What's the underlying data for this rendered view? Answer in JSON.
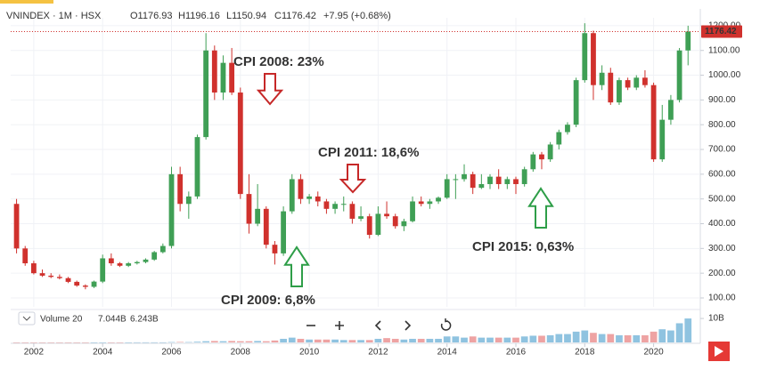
{
  "chart_data": {
    "type": "candlestick",
    "header": {
      "symbol": "VNINDEX · 1M · HSX",
      "open": "O1176.93",
      "high": "H1196.16",
      "low": "L1150.94",
      "close": "C1176.42",
      "change": "+7.95 (+0.68%)"
    },
    "volume_legend": {
      "name": "Volume 20",
      "value": "7.044B",
      "ma": "6.243B"
    },
    "last_price": {
      "value": 1176.42,
      "label": "1176.42"
    },
    "up_color": "#3f9f55",
    "down_color": "#d0312d",
    "volume_up_color": "#8fc3e0",
    "volume_down_color": "#eea3a3",
    "grid": true,
    "xlim": [
      2001.33,
      2021.33
    ],
    "xticks": [
      2002,
      2004,
      2006,
      2008,
      2010,
      2012,
      2014,
      2016,
      2018,
      2020
    ],
    "ylim": [
      64,
      1232
    ],
    "yticks": [
      {
        "value": 100,
        "label": "100.00"
      },
      {
        "value": 200,
        "label": "200.00"
      },
      {
        "value": 300,
        "label": "300.00"
      },
      {
        "value": 400,
        "label": "400.00"
      },
      {
        "value": 500,
        "label": "500.00"
      },
      {
        "value": 600,
        "label": "600.00"
      },
      {
        "value": 700,
        "label": "700.00"
      },
      {
        "value": 800,
        "label": "800.00"
      },
      {
        "value": 900,
        "label": "900.00"
      },
      {
        "value": 1000,
        "label": "1000.00"
      },
      {
        "value": 1100,
        "label": "1100.00"
      },
      {
        "value": 1200,
        "label": "1200.00"
      }
    ],
    "volume_lim": [
      0,
      13000000000
    ],
    "volume_ticks": [
      {
        "value": 10000000000,
        "label": "10B"
      }
    ],
    "x": [
      2001.5,
      2001.75,
      2002,
      2002.25,
      2002.5,
      2002.75,
      2003,
      2003.25,
      2003.5,
      2003.75,
      2004,
      2004.25,
      2004.5,
      2004.75,
      2005,
      2005.25,
      2005.5,
      2005.75,
      2006,
      2006.25,
      2006.5,
      2006.75,
      2007,
      2007.25,
      2007.5,
      2007.75,
      2008,
      2008.25,
      2008.5,
      2008.75,
      2009,
      2009.25,
      2009.5,
      2009.75,
      2010,
      2010.25,
      2010.5,
      2010.75,
      2011,
      2011.25,
      2011.5,
      2011.75,
      2012,
      2012.25,
      2012.5,
      2012.75,
      2013,
      2013.25,
      2013.5,
      2013.75,
      2014,
      2014.25,
      2014.5,
      2014.75,
      2015,
      2015.25,
      2015.5,
      2015.75,
      2016,
      2016.25,
      2016.5,
      2016.75,
      2017,
      2017.25,
      2017.5,
      2017.75,
      2018,
      2018.25,
      2018.5,
      2018.75,
      2019,
      2019.25,
      2019.5,
      2019.75,
      2020,
      2020.25,
      2020.5,
      2020.75,
      2021
    ],
    "open": [
      480,
      300,
      240,
      200,
      190,
      185,
      180,
      165,
      150,
      145,
      166,
      260,
      240,
      230,
      240,
      245,
      255,
      285,
      310,
      600,
      480,
      510,
      750,
      1100,
      930,
      1050,
      930,
      520,
      400,
      460,
      315,
      280,
      450,
      580,
      500,
      510,
      490,
      460,
      480,
      480,
      420,
      430,
      355,
      440,
      430,
      390,
      410,
      490,
      480,
      490,
      505,
      580,
      580,
      600,
      545,
      560,
      590,
      560,
      580,
      560,
      620,
      680,
      660,
      720,
      770,
      800,
      980,
      1170,
      960,
      1010,
      890,
      980,
      950,
      990,
      960,
      660,
      820,
      900,
      1100
    ],
    "high": [
      500,
      310,
      250,
      215,
      200,
      195,
      185,
      170,
      155,
      170,
      275,
      280,
      245,
      245,
      250,
      260,
      290,
      320,
      630,
      630,
      530,
      760,
      1170,
      1120,
      1080,
      1110,
      950,
      600,
      560,
      470,
      330,
      470,
      600,
      600,
      520,
      530,
      500,
      490,
      510,
      490,
      470,
      440,
      470,
      490,
      440,
      420,
      510,
      510,
      500,
      510,
      600,
      600,
      640,
      610,
      600,
      600,
      620,
      590,
      590,
      630,
      690,
      690,
      730,
      780,
      810,
      990,
      1210,
      1180,
      1040,
      1030,
      990,
      990,
      1000,
      1020,
      970,
      880,
      920,
      1110,
      1200
    ],
    "low": [
      280,
      230,
      195,
      185,
      180,
      175,
      160,
      145,
      135,
      140,
      160,
      230,
      225,
      225,
      235,
      240,
      250,
      280,
      300,
      450,
      420,
      500,
      740,
      900,
      900,
      920,
      500,
      360,
      390,
      300,
      235,
      270,
      440,
      480,
      480,
      470,
      440,
      440,
      450,
      400,
      410,
      340,
      350,
      420,
      380,
      370,
      405,
      470,
      460,
      480,
      500,
      500,
      570,
      520,
      540,
      540,
      540,
      540,
      520,
      550,
      610,
      620,
      650,
      700,
      760,
      790,
      970,
      900,
      940,
      880,
      880,
      940,
      940,
      950,
      650,
      650,
      800,
      890,
      1040
    ],
    "close": [
      300,
      240,
      200,
      190,
      185,
      180,
      165,
      150,
      145,
      166,
      260,
      240,
      230,
      240,
      245,
      255,
      285,
      310,
      600,
      480,
      510,
      750,
      1100,
      930,
      1050,
      930,
      520,
      400,
      460,
      315,
      280,
      450,
      580,
      500,
      510,
      490,
      460,
      480,
      480,
      420,
      430,
      355,
      440,
      430,
      390,
      410,
      490,
      480,
      490,
      505,
      580,
      580,
      600,
      545,
      560,
      590,
      560,
      580,
      560,
      620,
      680,
      660,
      720,
      770,
      800,
      980,
      1170,
      960,
      1010,
      890,
      980,
      950,
      990,
      960,
      660,
      820,
      900,
      1100,
      1176.42
    ],
    "volume": [
      10000000,
      10000000,
      15000000,
      15000000,
      15000000,
      15000000,
      15000000,
      15000000,
      15000000,
      15000000,
      30000000,
      30000000,
      30000000,
      30000000,
      40000000,
      40000000,
      40000000,
      40000000,
      150000000,
      200000000,
      150000000,
      300000000,
      500000000,
      600000000,
      500000000,
      600000000,
      500000000,
      500000000,
      600000000,
      500000000,
      800000000,
      1500000000,
      2000000000,
      1500000000,
      1200000000,
      1200000000,
      1200000000,
      1200000000,
      1000000000,
      1000000000,
      1000000000,
      1000000000,
      1500000000,
      1800000000,
      1500000000,
      1200000000,
      1500000000,
      1500000000,
      1500000000,
      1500000000,
      2500000000,
      2500000000,
      2000000000,
      2500000000,
      2000000000,
      2000000000,
      2000000000,
      2000000000,
      2000000000,
      2500000000,
      2800000000,
      2800000000,
      3000000000,
      3500000000,
      3500000000,
      4500000000,
      5000000000,
      4000000000,
      3500000000,
      3500000000,
      3000000000,
      3000000000,
      3000000000,
      3000000000,
      4500000000,
      5500000000,
      5000000000,
      8000000000,
      10000000000
    ],
    "annotations": [
      {
        "text": "CPI 2008: 23%",
        "color": "#c62828"
      },
      {
        "text": "CPI 2011: 18,6%",
        "color": "#c62828"
      },
      {
        "text": "CPI 2009: 6,8%",
        "color": "#2e9e48"
      },
      {
        "text": "CPI 2015: 0,63%",
        "color": "#2e9e48"
      }
    ]
  }
}
